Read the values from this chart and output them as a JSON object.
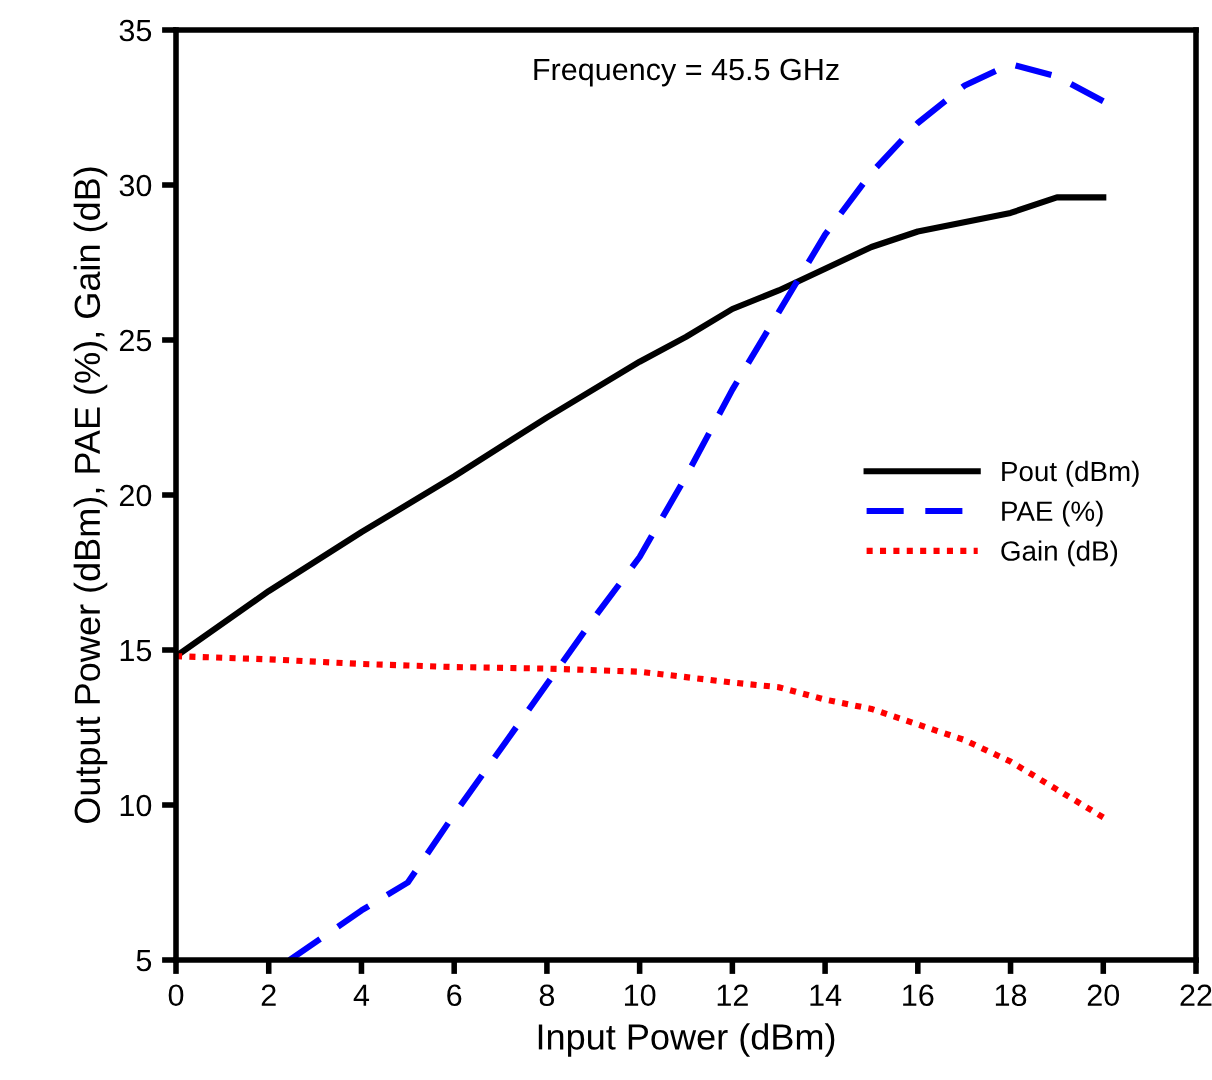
{
  "chart_data": {
    "type": "line",
    "xlabel": "Input Power (dBm)",
    "ylabel": "Output Power (dBm), PAE (%), Gain (dB)",
    "annotations": [
      "Frequency = 45.5 GHz"
    ],
    "xlim": [
      0,
      22
    ],
    "ylim": [
      5,
      35
    ],
    "xticks": [
      0,
      2,
      4,
      6,
      8,
      10,
      12,
      14,
      16,
      18,
      20,
      22
    ],
    "yticks": [
      5,
      10,
      15,
      20,
      25,
      30,
      35
    ],
    "grid": false,
    "legend": "right",
    "marker": "none",
    "series": [
      {
        "name": "Pout (dBm)",
        "color": "#000000",
        "line_style": "solid",
        "x": [
          0,
          2,
          4,
          6,
          8,
          10,
          11,
          12,
          13,
          14,
          15,
          16,
          17,
          18,
          19,
          20
        ],
        "values": [
          14.8,
          16.9,
          18.8,
          20.6,
          22.5,
          24.3,
          25.1,
          26.0,
          26.6,
          27.3,
          28.0,
          28.5,
          28.8,
          29.1,
          29.6,
          29.6
        ]
      },
      {
        "name": "PAE (%)",
        "color": "#0000ff",
        "line_style": "dashed",
        "x": [
          2.45,
          4,
          5,
          6,
          7,
          8,
          9,
          10,
          11,
          12,
          13,
          14,
          15,
          16,
          17,
          18,
          19,
          20
        ],
        "values": [
          5,
          6.6,
          7.5,
          9.7,
          11.8,
          13.9,
          16,
          18,
          20.6,
          23.4,
          25.9,
          28.4,
          30.4,
          32,
          33.2,
          33.9,
          33.5,
          32.7
        ]
      },
      {
        "name": "Gain (dB)",
        "color": "#ff0000",
        "line_style": "dotted",
        "x": [
          0,
          2,
          4,
          5,
          6,
          8,
          10,
          12,
          13,
          14,
          15,
          16,
          17,
          18,
          19,
          20
        ],
        "values": [
          14.8,
          14.7,
          14.55,
          14.5,
          14.45,
          14.4,
          14.3,
          13.95,
          13.8,
          13.4,
          13.1,
          12.6,
          12.1,
          11.4,
          10.5,
          9.6
        ]
      }
    ]
  }
}
